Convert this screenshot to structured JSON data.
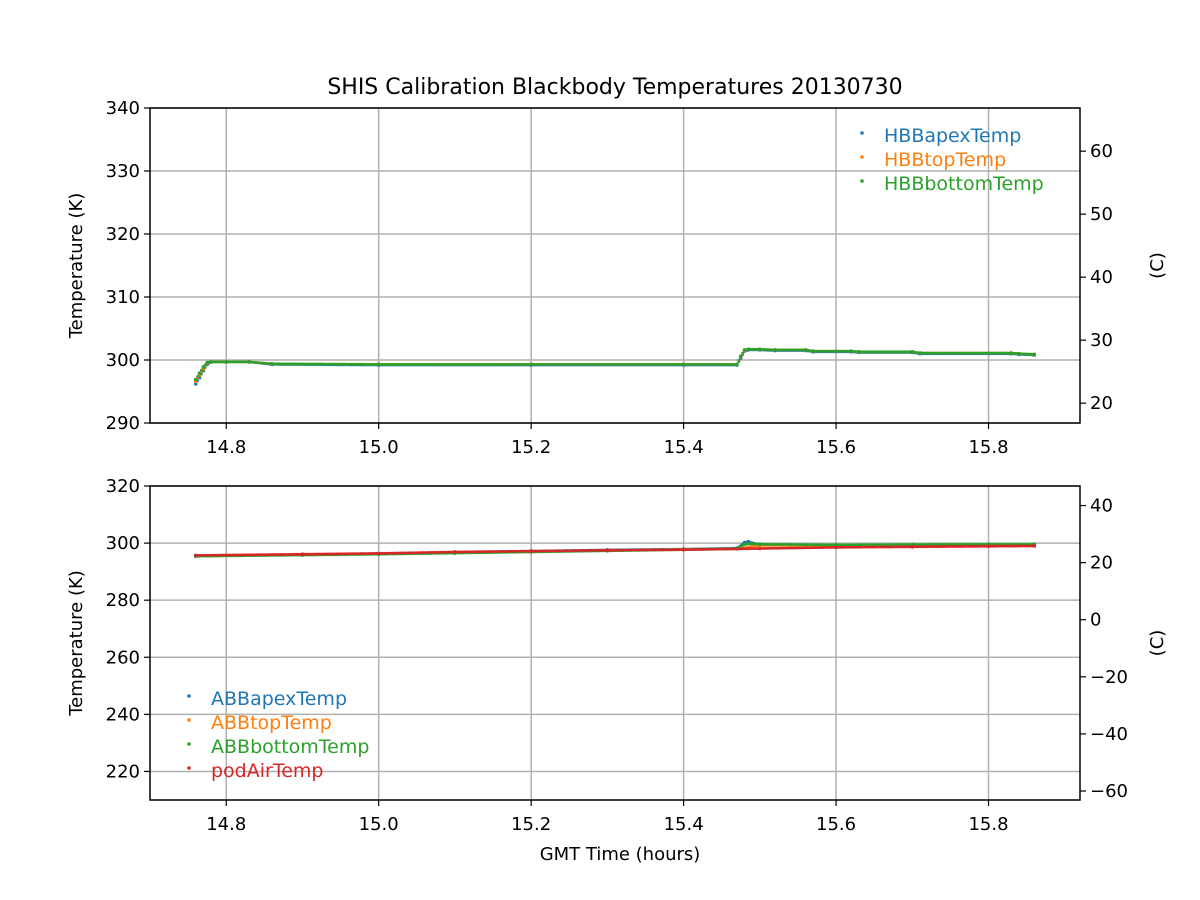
{
  "figure": {
    "title": "SHIS Calibration Blackbody Temperatures 20130730"
  },
  "colors": {
    "blue": "#1f77b4",
    "orange": "#ff7f0e",
    "green": "#2ca02c",
    "red": "#d62728",
    "grid": "#b0b0b0"
  },
  "chart_data": [
    {
      "type": "scatter",
      "title": "SHIS Calibration Blackbody Temperatures 20130730",
      "xlabel": "",
      "ylabel": "Temperature (K)",
      "ylabel_right": "(C)",
      "xlim": [
        14.7,
        15.92
      ],
      "ylim": [
        290,
        340
      ],
      "ylim_right": [
        16.85,
        66.85
      ],
      "x_ticks": [
        "14.8",
        "15.0",
        "15.2",
        "15.4",
        "15.6",
        "15.8"
      ],
      "y_ticks": [
        "290",
        "300",
        "310",
        "320",
        "330",
        "340"
      ],
      "y_ticks_right": [
        "20",
        "30",
        "40",
        "50",
        "60"
      ],
      "grid": true,
      "legend_position": "top-right",
      "series": [
        {
          "name": "HBBapexTemp",
          "color": "blue",
          "x": [
            14.76,
            14.765,
            14.77,
            14.775,
            14.78,
            14.8,
            14.83,
            14.86,
            15.0,
            15.2,
            15.4,
            15.47,
            15.475,
            15.48,
            15.485,
            15.5,
            15.52,
            15.56,
            15.57,
            15.62,
            15.63,
            15.7,
            15.71,
            15.83,
            15.84,
            15.86
          ],
          "y": [
            296.2,
            297.2,
            298.3,
            299.3,
            299.7,
            299.7,
            299.7,
            299.3,
            299.2,
            299.2,
            299.2,
            299.2,
            300.3,
            301.4,
            301.6,
            301.6,
            301.5,
            301.5,
            301.3,
            301.3,
            301.2,
            301.2,
            301.0,
            301.0,
            300.9,
            300.8
          ]
        },
        {
          "name": "HBBtopTemp",
          "color": "orange",
          "x": [
            14.76,
            14.765,
            14.77,
            14.775,
            14.78,
            14.8,
            14.83,
            14.86,
            15.0,
            15.2,
            15.4,
            15.47,
            15.475,
            15.48,
            15.485,
            15.5,
            15.52,
            15.56,
            15.57,
            15.62,
            15.63,
            15.7,
            15.71,
            15.83,
            15.84,
            15.86
          ],
          "y": [
            296.6,
            297.6,
            298.6,
            299.5,
            299.7,
            299.7,
            299.7,
            299.4,
            299.3,
            299.3,
            299.3,
            299.3,
            300.5,
            301.5,
            301.7,
            301.7,
            301.6,
            301.6,
            301.4,
            301.4,
            301.3,
            301.3,
            301.1,
            301.1,
            301.0,
            300.9
          ]
        },
        {
          "name": "HBBbottomTemp",
          "color": "green",
          "x": [
            14.76,
            14.765,
            14.77,
            14.775,
            14.78,
            14.8,
            14.83,
            14.86,
            15.0,
            15.2,
            15.4,
            15.47,
            15.475,
            15.48,
            15.485,
            15.5,
            15.52,
            15.56,
            15.57,
            15.62,
            15.63,
            15.7,
            15.71,
            15.83,
            15.84,
            15.86
          ],
          "y": [
            296.9,
            297.9,
            298.9,
            299.6,
            299.7,
            299.7,
            299.7,
            299.4,
            299.3,
            299.3,
            299.3,
            299.3,
            300.6,
            301.6,
            301.7,
            301.7,
            301.6,
            301.6,
            301.4,
            301.4,
            301.3,
            301.3,
            301.1,
            301.1,
            301.0,
            300.9
          ]
        }
      ]
    },
    {
      "type": "scatter",
      "title": "",
      "xlabel": "GMT Time (hours)",
      "ylabel": "Temperature (K)",
      "ylabel_right": "(C)",
      "xlim": [
        14.7,
        15.92
      ],
      "ylim": [
        210,
        320
      ],
      "ylim_right": [
        -63.15,
        46.85
      ],
      "x_ticks": [
        "14.8",
        "15.0",
        "15.2",
        "15.4",
        "15.6",
        "15.8"
      ],
      "y_ticks": [
        "220",
        "240",
        "260",
        "280",
        "300",
        "320"
      ],
      "y_ticks_right": [
        "−60",
        "−40",
        "−20",
        "0",
        "20",
        "40"
      ],
      "grid": true,
      "legend_position": "lower-left",
      "series": [
        {
          "name": "ABBapexTemp",
          "color": "blue",
          "x": [
            14.76,
            14.9,
            15.0,
            15.1,
            15.2,
            15.3,
            15.4,
            15.47,
            15.48,
            15.485,
            15.49,
            15.5,
            15.55,
            15.6,
            15.7,
            15.8,
            15.86
          ],
          "y": [
            295.5,
            296.0,
            296.3,
            296.8,
            297.2,
            297.6,
            297.9,
            298.2,
            300.2,
            300.5,
            300.0,
            299.6,
            299.3,
            299.2,
            299.2,
            299.3,
            299.3
          ]
        },
        {
          "name": "ABBtopTemp",
          "color": "orange",
          "x": [
            14.76,
            14.9,
            15.0,
            15.1,
            15.2,
            15.3,
            15.4,
            15.47,
            15.5,
            15.6,
            15.7,
            15.8,
            15.86
          ],
          "y": [
            295.5,
            295.9,
            296.2,
            296.6,
            297.0,
            297.4,
            297.8,
            298.0,
            299.2,
            299.2,
            299.3,
            299.4,
            299.4
          ]
        },
        {
          "name": "ABBbottomTemp",
          "color": "green",
          "x": [
            14.76,
            14.9,
            15.0,
            15.1,
            15.2,
            15.3,
            15.4,
            15.47,
            15.48,
            15.49,
            15.5,
            15.6,
            15.7,
            15.8,
            15.86
          ],
          "y": [
            295.4,
            295.8,
            296.1,
            296.5,
            296.9,
            297.3,
            297.7,
            298.0,
            299.6,
            299.8,
            299.6,
            299.4,
            299.5,
            299.6,
            299.6
          ]
        },
        {
          "name": "podAirTemp",
          "color": "red",
          "x": [
            14.76,
            14.9,
            15.0,
            15.1,
            15.2,
            15.3,
            15.4,
            15.5,
            15.6,
            15.7,
            15.8,
            15.86
          ],
          "y": [
            295.7,
            296.1,
            296.4,
            296.9,
            297.2,
            297.5,
            297.7,
            298.1,
            298.5,
            298.7,
            298.9,
            299.0
          ]
        }
      ]
    }
  ]
}
